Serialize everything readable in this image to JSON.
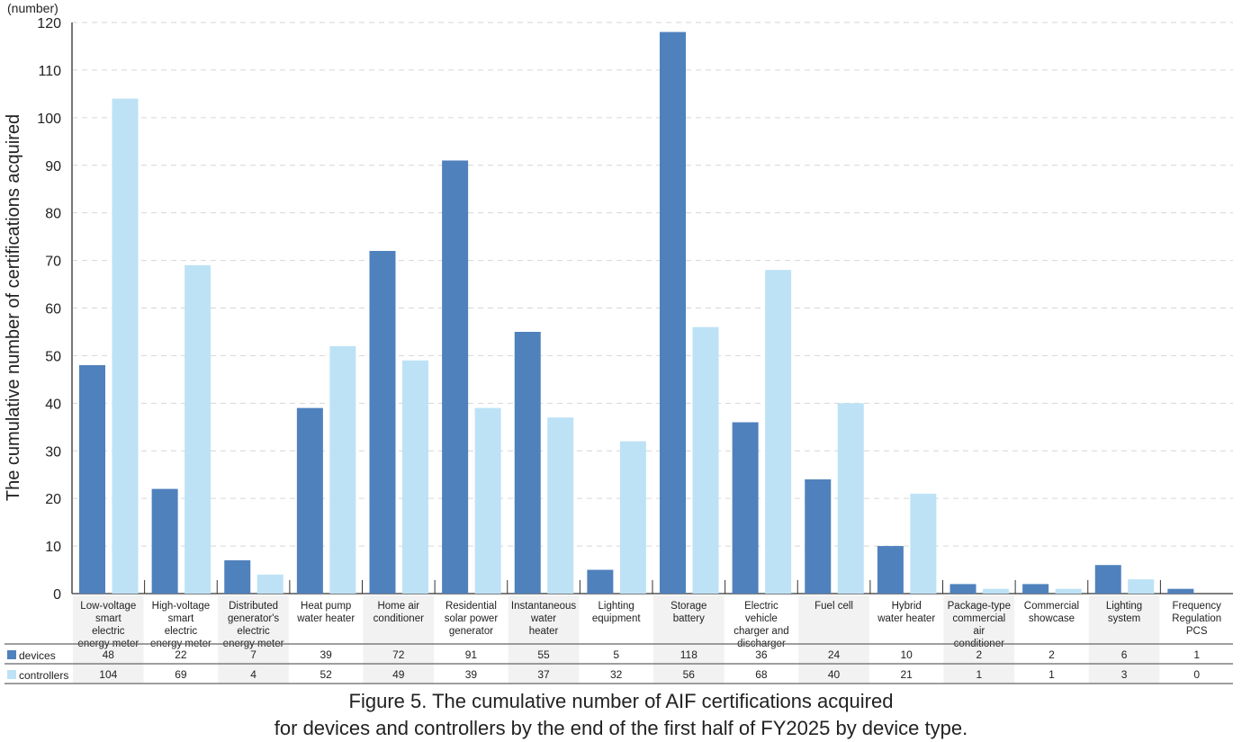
{
  "chart_data": {
    "type": "bar",
    "title_lines": [
      "Figure 5. The cumulative number of AIF certifications acquired",
      "for devices and controllers by the end of the first half of FY2025 by device type."
    ],
    "ylabel": "The cumulative number of certifications acquired",
    "yunit": "(number)",
    "ylim": [
      0,
      120
    ],
    "yticks": [
      0,
      10,
      20,
      30,
      40,
      50,
      60,
      70,
      80,
      90,
      100,
      110,
      120
    ],
    "grid": true,
    "legend_placement": "table-left",
    "categories": [
      [
        "Low-voltage",
        "smart",
        "electric",
        "energy meter"
      ],
      [
        "High-voltage",
        "smart",
        "electric",
        "energy meter"
      ],
      [
        "Distributed",
        "generator's",
        "electric",
        "energy meter"
      ],
      [
        "Heat pump",
        "water heater"
      ],
      [
        "Home air",
        "conditioner"
      ],
      [
        "Residential",
        "solar power",
        "generator"
      ],
      [
        "Instantaneous",
        "water",
        "heater"
      ],
      [
        "Lighting",
        "equipment"
      ],
      [
        "Storage",
        "battery"
      ],
      [
        "Electric",
        "vehicle",
        "charger and",
        "discharger"
      ],
      [
        "Fuel cell"
      ],
      [
        "Hybrid",
        "water heater"
      ],
      [
        "Package-type",
        "commercial",
        "air",
        "conditioner"
      ],
      [
        "Commercial",
        "showcase"
      ],
      [
        "Lighting",
        "system"
      ],
      [
        "Frequency",
        "Regulation",
        "PCS"
      ]
    ],
    "series": [
      {
        "name": "devices",
        "color": "#4f81bd",
        "values": [
          48,
          22,
          7,
          39,
          72,
          91,
          55,
          5,
          118,
          36,
          24,
          10,
          2,
          2,
          6,
          1
        ]
      },
      {
        "name": "controllers",
        "color": "#bde2f5",
        "values": [
          104,
          69,
          4,
          52,
          49,
          39,
          37,
          32,
          56,
          68,
          40,
          21,
          1,
          1,
          3,
          0
        ]
      }
    ]
  }
}
